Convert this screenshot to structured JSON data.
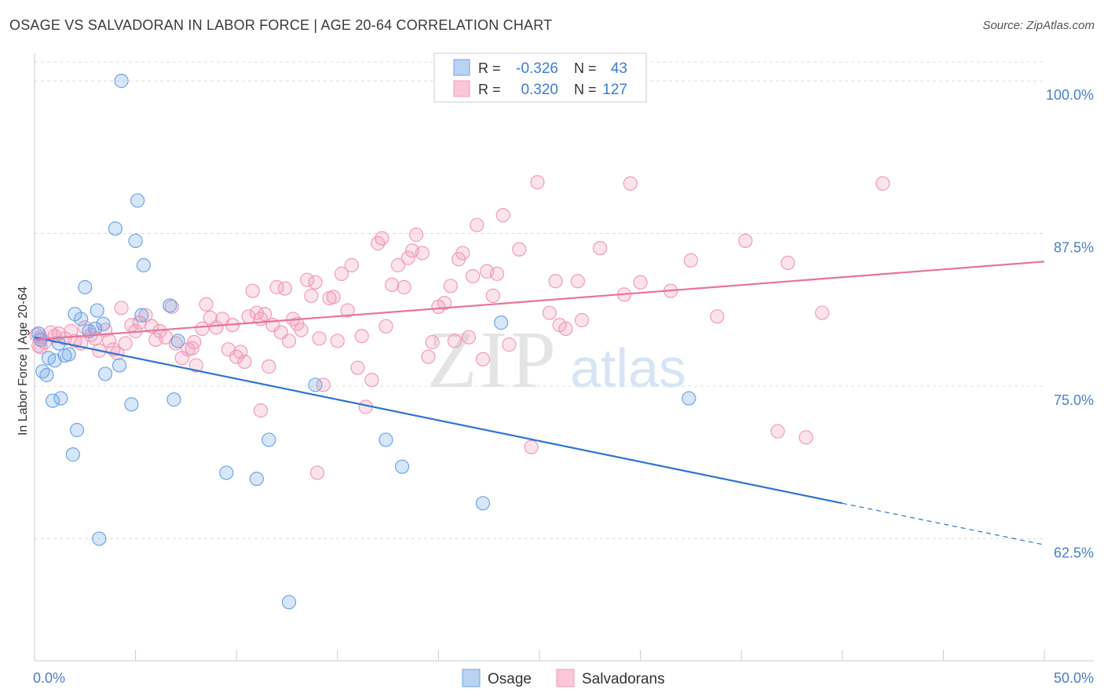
{
  "title": "OSAGE VS SALVADORAN IN LABOR FORCE | AGE 20-64 CORRELATION CHART",
  "source": "Source: ZipAtlas.com",
  "watermark": {
    "zip": "ZIP",
    "atlas": "atlas"
  },
  "colors": {
    "osage": "#6ea6e6",
    "osage_line": "#2f74d0",
    "salvadoran": "#f29ab8",
    "salvadoran_line": "#e8739c",
    "tick_label": "#4a7fc8"
  },
  "legend": {
    "r_label": "R =",
    "n_label": "N =",
    "rows": [
      {
        "r": "-0.326",
        "n": "43"
      },
      {
        "r": "0.320",
        "n": "127"
      }
    ]
  },
  "bottom_legend": [
    "Osage",
    "Salvadorans"
  ],
  "chart_data": {
    "type": "scatter",
    "title": "OSAGE VS SALVADORAN IN LABOR FORCE | AGE 20-64 CORRELATION CHART",
    "ylabel": "In Labor Force | Age 20-64",
    "xlim": [
      0,
      50
    ],
    "ylim": [
      52.5,
      102
    ],
    "x_tick_labels": [
      "0.0%",
      "50.0%"
    ],
    "y_ticks": [
      62.5,
      75.0,
      87.5,
      100.0
    ],
    "y_tick_labels": [
      "62.5%",
      "75.0%",
      "87.5%",
      "100.0%"
    ],
    "grid": true,
    "series": [
      {
        "name": "Osage",
        "trend": {
          "x0": 0,
          "y0": 79.0,
          "x1": 40,
          "y1": 65.4,
          "dash_to_x": 50,
          "dash_to_y": 62.0
        },
        "points": [
          [
            0.2,
            79.3
          ],
          [
            0.3,
            78.8
          ],
          [
            0.4,
            76.2
          ],
          [
            0.6,
            75.9
          ],
          [
            0.7,
            77.3
          ],
          [
            0.9,
            73.8
          ],
          [
            1.0,
            77.1
          ],
          [
            1.2,
            78.5
          ],
          [
            1.3,
            74.0
          ],
          [
            1.5,
            77.5
          ],
          [
            1.7,
            77.6
          ],
          [
            1.9,
            69.4
          ],
          [
            2.0,
            80.9
          ],
          [
            2.1,
            71.4
          ],
          [
            2.3,
            80.5
          ],
          [
            2.5,
            83.1
          ],
          [
            2.7,
            79.5
          ],
          [
            3.0,
            79.7
          ],
          [
            3.1,
            81.2
          ],
          [
            3.2,
            62.5
          ],
          [
            3.4,
            80.1
          ],
          [
            3.5,
            76.0
          ],
          [
            4.0,
            87.9
          ],
          [
            4.2,
            76.7
          ],
          [
            4.3,
            100.0
          ],
          [
            4.8,
            73.5
          ],
          [
            5.0,
            86.9
          ],
          [
            5.1,
            90.2
          ],
          [
            5.4,
            84.9
          ],
          [
            5.3,
            80.8
          ],
          [
            6.7,
            81.6
          ],
          [
            6.9,
            73.9
          ],
          [
            7.1,
            78.7
          ],
          [
            9.5,
            67.9
          ],
          [
            11.0,
            67.4
          ],
          [
            11.6,
            70.6
          ],
          [
            12.6,
            57.3
          ],
          [
            13.9,
            75.1
          ],
          [
            17.4,
            70.6
          ],
          [
            18.2,
            68.4
          ],
          [
            22.2,
            65.4
          ],
          [
            23.1,
            80.2
          ],
          [
            32.4,
            74.0
          ]
        ]
      },
      {
        "name": "Salvadorans",
        "trend": {
          "x0": 0,
          "y0": 78.8,
          "x1": 50,
          "y1": 85.2
        },
        "points": [
          [
            0.1,
            79.2
          ],
          [
            0.2,
            78.3
          ],
          [
            0.3,
            79.0
          ],
          [
            0.5,
            78.6
          ],
          [
            0.8,
            79.4
          ],
          [
            1.0,
            79.1
          ],
          [
            1.2,
            79.3
          ],
          [
            1.5,
            78.9
          ],
          [
            1.8,
            79.5
          ],
          [
            2.0,
            78.7
          ],
          [
            2.3,
            78.5
          ],
          [
            2.5,
            79.8
          ],
          [
            2.8,
            79.2
          ],
          [
            3.0,
            78.9
          ],
          [
            3.2,
            77.9
          ],
          [
            3.5,
            79.6
          ],
          [
            3.7,
            78.7
          ],
          [
            3.9,
            78.0
          ],
          [
            4.1,
            77.7
          ],
          [
            4.3,
            81.4
          ],
          [
            4.5,
            78.5
          ],
          [
            4.8,
            80.0
          ],
          [
            5.0,
            79.5
          ],
          [
            5.2,
            80.2
          ],
          [
            5.5,
            80.8
          ],
          [
            5.8,
            79.9
          ],
          [
            6.0,
            78.8
          ],
          [
            6.2,
            79.5
          ],
          [
            6.5,
            79.0
          ],
          [
            6.8,
            81.5
          ],
          [
            7.0,
            78.5
          ],
          [
            7.3,
            77.3
          ],
          [
            7.6,
            78.0
          ],
          [
            7.8,
            78.1
          ],
          [
            8.0,
            76.7
          ],
          [
            8.3,
            79.7
          ],
          [
            8.5,
            81.7
          ],
          [
            8.7,
            80.6
          ],
          [
            9.0,
            79.8
          ],
          [
            9.3,
            80.5
          ],
          [
            9.6,
            78.0
          ],
          [
            9.8,
            80.0
          ],
          [
            10.0,
            77.4
          ],
          [
            10.2,
            77.8
          ],
          [
            10.4,
            77.0
          ],
          [
            10.6,
            80.7
          ],
          [
            10.8,
            82.8
          ],
          [
            11.0,
            81.0
          ],
          [
            11.2,
            80.5
          ],
          [
            11.4,
            80.9
          ],
          [
            11.6,
            76.6
          ],
          [
            11.8,
            80.0
          ],
          [
            12.0,
            83.1
          ],
          [
            12.2,
            79.4
          ],
          [
            12.4,
            83.0
          ],
          [
            12.6,
            78.7
          ],
          [
            12.8,
            80.5
          ],
          [
            13.0,
            80.1
          ],
          [
            13.2,
            79.6
          ],
          [
            13.5,
            83.7
          ],
          [
            13.7,
            82.4
          ],
          [
            13.9,
            83.5
          ],
          [
            14.1,
            78.9
          ],
          [
            14.3,
            75.1
          ],
          [
            14.6,
            82.2
          ],
          [
            14.8,
            82.3
          ],
          [
            15.0,
            78.7
          ],
          [
            15.2,
            84.2
          ],
          [
            15.5,
            81.2
          ],
          [
            15.7,
            84.9
          ],
          [
            16.0,
            76.5
          ],
          [
            16.2,
            79.1
          ],
          [
            16.4,
            73.3
          ],
          [
            16.7,
            75.5
          ],
          [
            17.0,
            86.7
          ],
          [
            17.2,
            87.1
          ],
          [
            17.4,
            79.9
          ],
          [
            17.7,
            83.3
          ],
          [
            18.0,
            84.9
          ],
          [
            18.3,
            83.1
          ],
          [
            18.5,
            85.5
          ],
          [
            18.7,
            86.1
          ],
          [
            18.9,
            87.4
          ],
          [
            19.2,
            85.9
          ],
          [
            19.5,
            77.4
          ],
          [
            19.7,
            78.6
          ],
          [
            20.0,
            81.5
          ],
          [
            20.3,
            81.8
          ],
          [
            20.6,
            83.2
          ],
          [
            20.8,
            78.7
          ],
          [
            21.0,
            85.4
          ],
          [
            21.2,
            85.9
          ],
          [
            21.5,
            79.0
          ],
          [
            21.7,
            84.0
          ],
          [
            21.9,
            88.2
          ],
          [
            22.2,
            77.2
          ],
          [
            22.4,
            84.4
          ],
          [
            22.7,
            82.4
          ],
          [
            22.9,
            84.2
          ],
          [
            23.2,
            89.0
          ],
          [
            23.5,
            78.4
          ],
          [
            24.0,
            86.2
          ],
          [
            24.6,
            70.0
          ],
          [
            24.9,
            91.7
          ],
          [
            25.5,
            81.0
          ],
          [
            25.8,
            83.6
          ],
          [
            26.0,
            80.0
          ],
          [
            26.3,
            79.7
          ],
          [
            26.9,
            83.6
          ],
          [
            27.1,
            80.4
          ],
          [
            28.0,
            86.3
          ],
          [
            29.2,
            82.5
          ],
          [
            29.5,
            91.6
          ],
          [
            30.0,
            83.5
          ],
          [
            31.5,
            82.8
          ],
          [
            32.5,
            85.3
          ],
          [
            33.8,
            80.7
          ],
          [
            35.2,
            86.9
          ],
          [
            36.8,
            71.3
          ],
          [
            37.3,
            85.1
          ],
          [
            38.2,
            70.8
          ],
          [
            39.0,
            81.0
          ],
          [
            42.0,
            91.6
          ],
          [
            14.0,
            67.9
          ],
          [
            11.2,
            73.0
          ],
          [
            7.9,
            78.6
          ],
          [
            0.3,
            78.2
          ]
        ]
      }
    ]
  }
}
